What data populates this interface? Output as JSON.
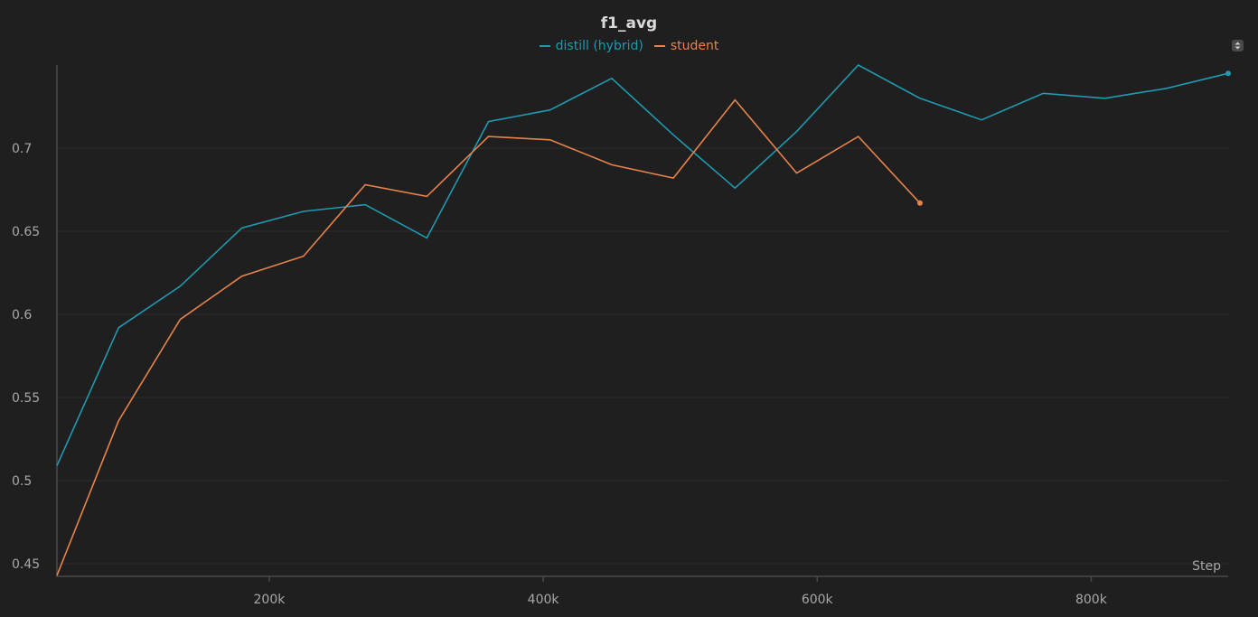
{
  "chart_data": {
    "type": "line",
    "title": "f1_avg",
    "xlabel": "Step",
    "ylabel": "",
    "xlim": [
      45000,
      900000
    ],
    "ylim": [
      0.443,
      0.75
    ],
    "grid": true,
    "legend_position": "top-center",
    "x_ticks": [
      200000,
      400000,
      600000,
      800000
    ],
    "x_tick_labels": [
      "200k",
      "400k",
      "600k",
      "800k"
    ],
    "y_ticks": [
      0.45,
      0.5,
      0.55,
      0.6,
      0.65,
      0.7
    ],
    "y_tick_labels": [
      "0.45",
      "0.5",
      "0.55",
      "0.6",
      "0.65",
      "0.7"
    ],
    "series": [
      {
        "name": "distill (hybrid)",
        "color": "#1f9ab0",
        "x": [
          45000,
          90000,
          135000,
          180000,
          225000,
          270000,
          315000,
          360000,
          405000,
          450000,
          495000,
          540000,
          585000,
          630000,
          675000,
          720000,
          765000,
          810000,
          855000,
          900000
        ],
        "y": [
          0.509,
          0.592,
          0.617,
          0.652,
          0.662,
          0.666,
          0.646,
          0.716,
          0.723,
          0.742,
          0.708,
          0.676,
          0.71,
          0.75,
          0.73,
          0.717,
          0.733,
          0.73,
          0.736,
          0.745
        ]
      },
      {
        "name": "student",
        "color": "#e8834c",
        "x": [
          45000,
          90000,
          135000,
          180000,
          225000,
          270000,
          315000,
          360000,
          405000,
          450000,
          495000,
          540000,
          585000,
          630000,
          675000
        ],
        "y": [
          0.443,
          0.536,
          0.597,
          0.623,
          0.635,
          0.678,
          0.671,
          0.707,
          0.705,
          0.69,
          0.682,
          0.729,
          0.685,
          0.707,
          0.667
        ]
      }
    ]
  },
  "colors": {
    "background": "#1f1f1f",
    "grid": "#2c2c2c",
    "axis": "#4a4a4a",
    "tick_text": "#a8a8a8",
    "title_text": "#d9d9d9"
  },
  "menu_icon": "sort-arrows-icon"
}
